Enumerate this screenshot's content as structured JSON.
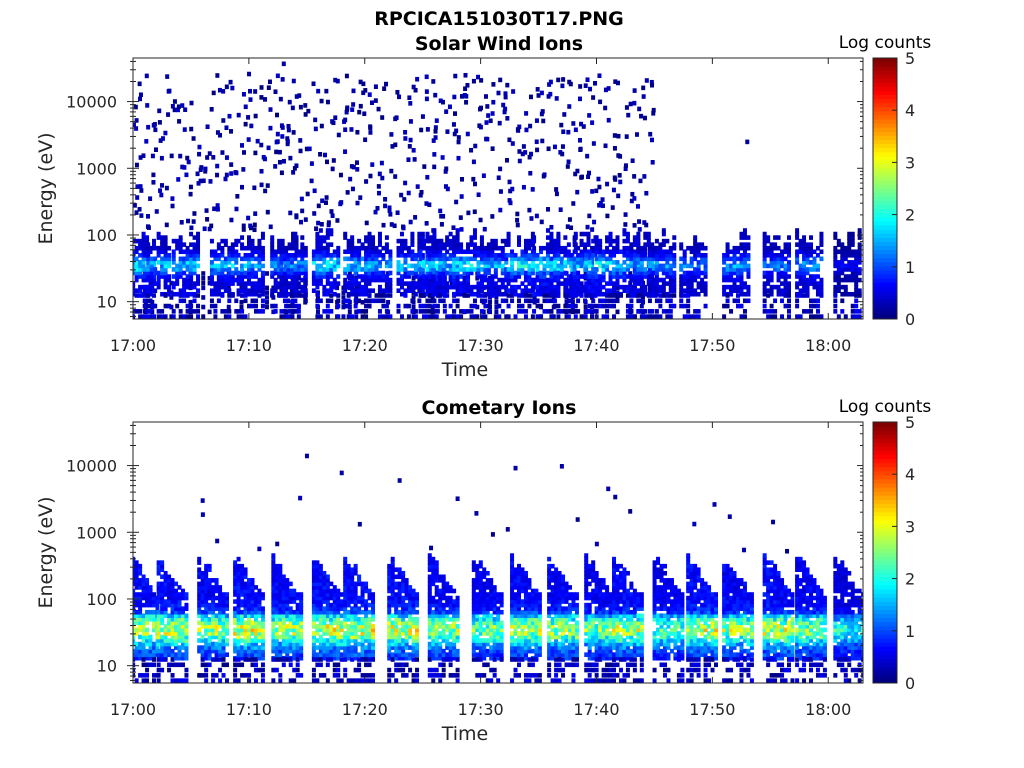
{
  "figure_title": "RPCICA151030T17.PNG",
  "colors": {
    "colormap": "jet",
    "low": "#00008f",
    "mid": "#00ffff",
    "high": "#800000"
  },
  "chart_data": [
    {
      "type": "heatmap",
      "title": "Solar Wind Ions",
      "xlabel": "Time",
      "ylabel": "Energy (eV)",
      "x_ticks": [
        "17:00",
        "17:10",
        "17:20",
        "17:30",
        "17:40",
        "17:50",
        "18:00"
      ],
      "y_ticks": [
        "10",
        "100",
        "1000",
        "10000"
      ],
      "y_scale": "log",
      "xlim": [
        "17:00",
        "18:03"
      ],
      "ylim": [
        5.5,
        45000
      ],
      "colorbar": {
        "label": "Log counts",
        "ticks": [
          "0",
          "1",
          "2",
          "3",
          "4",
          "5"
        ],
        "range": [
          0,
          5
        ]
      },
      "scan_times_min": [
        0.5,
        1.8,
        4.3,
        7.6,
        9.9,
        12.8,
        13.6,
        16.4,
        19.1,
        20.9,
        23.7,
        25.6,
        26.4,
        28.5,
        30.9,
        33.2,
        35.4,
        36.9,
        38.6,
        39.9,
        42.3,
        43.8,
        45.4,
        48.1,
        51.8,
        55.3,
        58.1,
        61.4
      ],
      "peak_log_counts": [
        1.9,
        1.6,
        1.7,
        1.6,
        1.5,
        1.4,
        1.3,
        1.8,
        1.6,
        1.5,
        1.7,
        1.9,
        1.6,
        1.8,
        1.5,
        1.9,
        2.0,
        1.7,
        1.6,
        1.9,
        1.8,
        1.5,
        1.4,
        1.3,
        1.5,
        1.2,
        1.4,
        0.6
      ],
      "sparse_high_energy_until": "17:45",
      "isolated_counts": [
        {
          "time": "17:10",
          "energy": 26000
        },
        {
          "time": "17:13",
          "energy": 37000
        },
        {
          "time": "17:53",
          "energy": 2500
        }
      ]
    },
    {
      "type": "heatmap",
      "title": "Cometary Ions",
      "xlabel": "Time",
      "ylabel": "Energy (eV)",
      "x_ticks": [
        "17:00",
        "17:10",
        "17:20",
        "17:30",
        "17:40",
        "17:50",
        "18:00"
      ],
      "y_ticks": [
        "10",
        "100",
        "1000",
        "10000"
      ],
      "y_scale": "log",
      "xlim": [
        "17:00",
        "18:03"
      ],
      "ylim": [
        5.5,
        45000
      ],
      "colorbar": {
        "label": "Log counts",
        "ticks": [
          "0",
          "1",
          "2",
          "3",
          "4",
          "5"
        ],
        "range": [
          0,
          5
        ]
      },
      "scan_times_min": [
        0.5,
        3.0,
        6.5,
        9.6,
        12.9,
        16.4,
        19.1,
        22.9,
        26.4,
        30.2,
        33.5,
        36.7,
        39.9,
        42.3,
        45.8,
        48.7,
        51.8,
        55.3,
        58.1,
        61.4
      ],
      "peak_log_counts": [
        2.9,
        3.0,
        2.8,
        3.1,
        2.9,
        3.0,
        3.1,
        3.0,
        2.8,
        2.6,
        2.9,
        2.8,
        2.6,
        2.9,
        2.4,
        3.0,
        2.8,
        3.0,
        2.7,
        2.1
      ],
      "isolated_counts": [
        {
          "time": "17:15",
          "energy": 14000
        },
        {
          "time": "17:18",
          "energy": 7800
        },
        {
          "time": "17:23",
          "energy": 6000
        },
        {
          "time": "17:33",
          "energy": 9200
        },
        {
          "time": "17:37",
          "energy": 9800
        },
        {
          "time": "17:41",
          "energy": 4500
        },
        {
          "time": "17:06",
          "energy": 3000
        },
        {
          "time": "17:28",
          "energy": 3200
        }
      ]
    }
  ]
}
